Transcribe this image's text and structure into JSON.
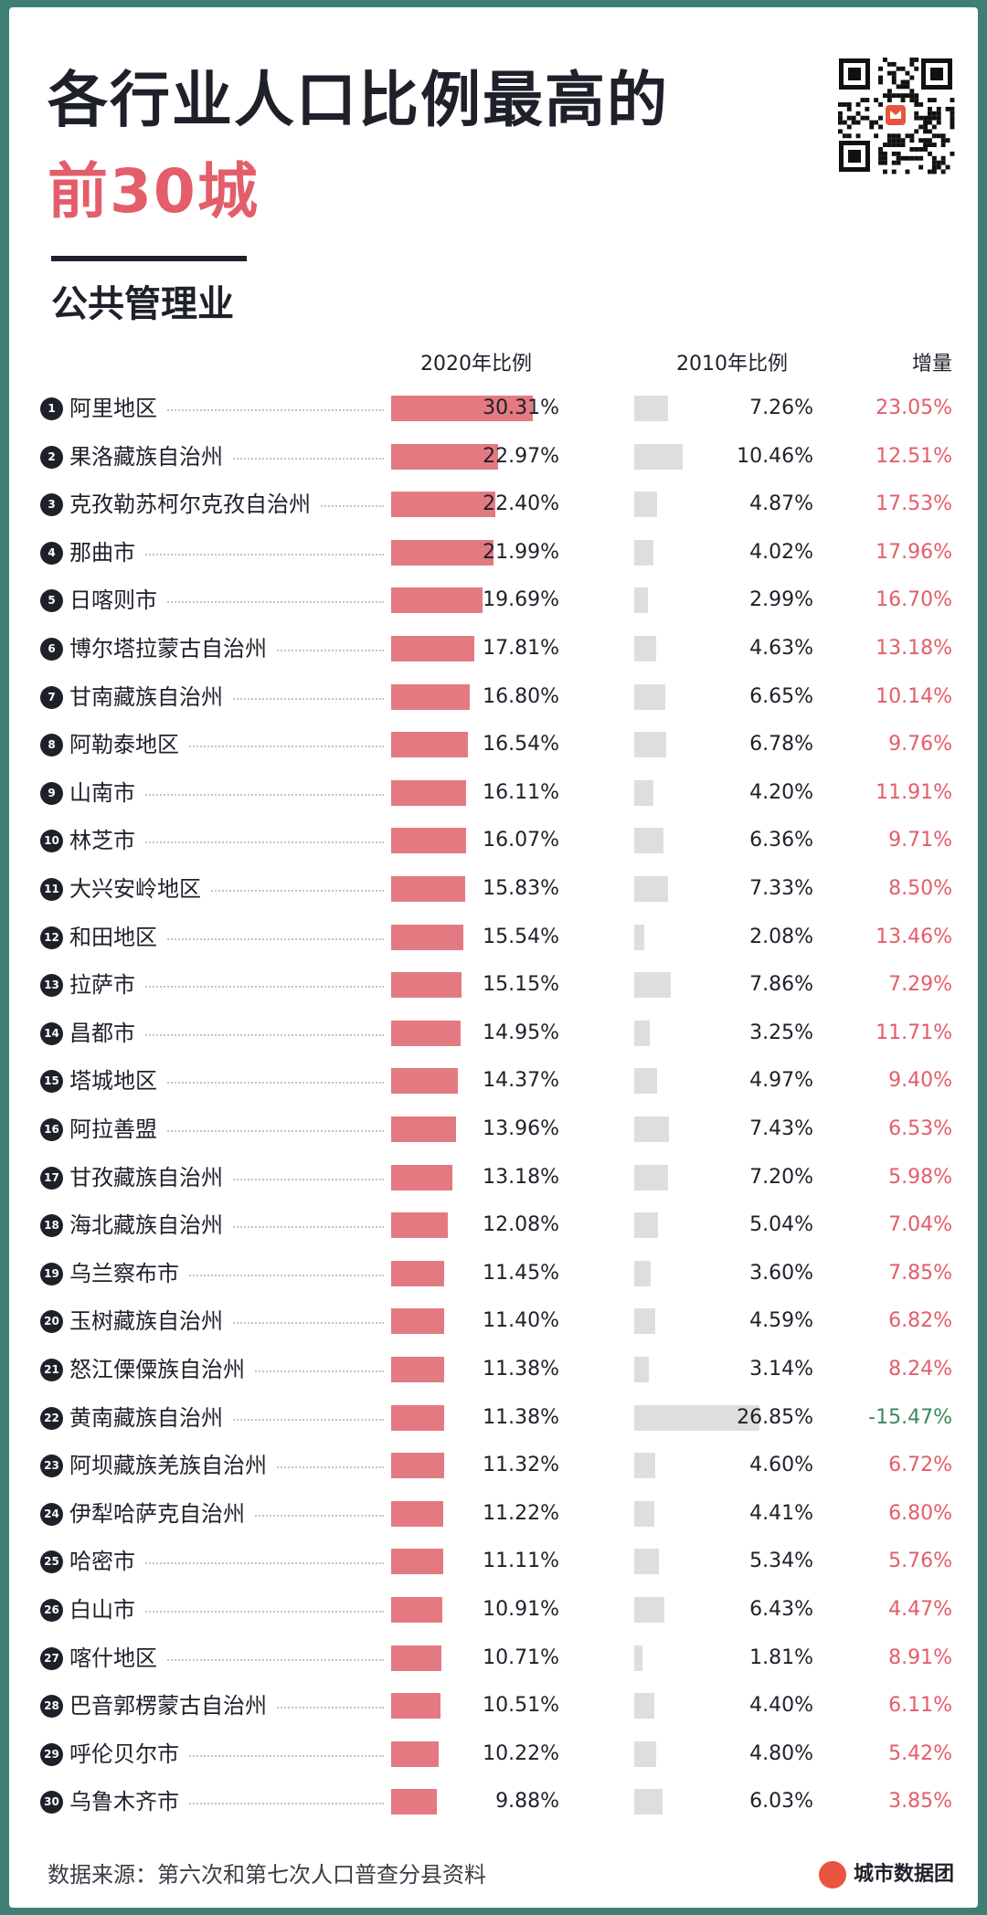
{
  "title_line1": "各行业人口比例最高的",
  "title_line2": "前30城",
  "subtitle": "公共管理业",
  "headers": {
    "y2020": "2020年比例",
    "y2010": "2010年比例",
    "increase": "增量"
  },
  "footer": {
    "source": "数据来源：第六次和第七次人口普查分县资料",
    "brand": "城市数据团"
  },
  "colors": {
    "bar2020": "#e47a81",
    "bar2010": "#dedede",
    "increase_positive": "#e35d6a",
    "increase_negative": "#3a8a5c",
    "accent": "#e35d6a",
    "background": "#3f7f73"
  },
  "icons": {
    "qr": "qr-code-icon",
    "brand": "brand-logo-icon"
  },
  "chart_data": {
    "type": "table",
    "title": "各行业人口比例最高的前30城",
    "subtitle": "公共管理业",
    "columns": [
      "2020年比例",
      "2010年比例",
      "增量"
    ],
    "rows": [
      {
        "rank": "1",
        "city": "阿里地区",
        "y2020": 30.31,
        "y2010": 7.26,
        "inc": 23.05,
        "y2020_text": "30.31%",
        "y2010_text": "7.26%",
        "inc_text": "23.05%"
      },
      {
        "rank": "2",
        "city": "果洛藏族自治州",
        "y2020": 22.97,
        "y2010": 10.46,
        "inc": 12.51,
        "y2020_text": "22.97%",
        "y2010_text": "10.46%",
        "inc_text": "12.51%"
      },
      {
        "rank": "3",
        "city": "克孜勒苏柯尔克孜自治州",
        "y2020": 22.4,
        "y2010": 4.87,
        "inc": 17.53,
        "y2020_text": "22.40%",
        "y2010_text": "4.87%",
        "inc_text": "17.53%"
      },
      {
        "rank": "4",
        "city": "那曲市",
        "y2020": 21.99,
        "y2010": 4.02,
        "inc": 17.96,
        "y2020_text": "21.99%",
        "y2010_text": "4.02%",
        "inc_text": "17.96%"
      },
      {
        "rank": "5",
        "city": "日喀则市",
        "y2020": 19.69,
        "y2010": 2.99,
        "inc": 16.7,
        "y2020_text": "19.69%",
        "y2010_text": "2.99%",
        "inc_text": "16.70%"
      },
      {
        "rank": "6",
        "city": "博尔塔拉蒙古自治州",
        "y2020": 17.81,
        "y2010": 4.63,
        "inc": 13.18,
        "y2020_text": "17.81%",
        "y2010_text": "4.63%",
        "inc_text": "13.18%"
      },
      {
        "rank": "7",
        "city": "甘南藏族自治州",
        "y2020": 16.8,
        "y2010": 6.65,
        "inc": 10.14,
        "y2020_text": "16.80%",
        "y2010_text": "6.65%",
        "inc_text": "10.14%"
      },
      {
        "rank": "8",
        "city": "阿勒泰地区",
        "y2020": 16.54,
        "y2010": 6.78,
        "inc": 9.76,
        "y2020_text": "16.54%",
        "y2010_text": "6.78%",
        "inc_text": "9.76%"
      },
      {
        "rank": "9",
        "city": "山南市",
        "y2020": 16.11,
        "y2010": 4.2,
        "inc": 11.91,
        "y2020_text": "16.11%",
        "y2010_text": "4.20%",
        "inc_text": "11.91%"
      },
      {
        "rank": "10",
        "city": "林芝市",
        "y2020": 16.07,
        "y2010": 6.36,
        "inc": 9.71,
        "y2020_text": "16.07%",
        "y2010_text": "6.36%",
        "inc_text": "9.71%"
      },
      {
        "rank": "11",
        "city": "大兴安岭地区",
        "y2020": 15.83,
        "y2010": 7.33,
        "inc": 8.5,
        "y2020_text": "15.83%",
        "y2010_text": "7.33%",
        "inc_text": "8.50%"
      },
      {
        "rank": "12",
        "city": "和田地区",
        "y2020": 15.54,
        "y2010": 2.08,
        "inc": 13.46,
        "y2020_text": "15.54%",
        "y2010_text": "2.08%",
        "inc_text": "13.46%"
      },
      {
        "rank": "13",
        "city": "拉萨市",
        "y2020": 15.15,
        "y2010": 7.86,
        "inc": 7.29,
        "y2020_text": "15.15%",
        "y2010_text": "7.86%",
        "inc_text": "7.29%"
      },
      {
        "rank": "14",
        "city": "昌都市",
        "y2020": 14.95,
        "y2010": 3.25,
        "inc": 11.71,
        "y2020_text": "14.95%",
        "y2010_text": "3.25%",
        "inc_text": "11.71%"
      },
      {
        "rank": "15",
        "city": "塔城地区",
        "y2020": 14.37,
        "y2010": 4.97,
        "inc": 9.4,
        "y2020_text": "14.37%",
        "y2010_text": "4.97%",
        "inc_text": "9.40%"
      },
      {
        "rank": "16",
        "city": "阿拉善盟",
        "y2020": 13.96,
        "y2010": 7.43,
        "inc": 6.53,
        "y2020_text": "13.96%",
        "y2010_text": "7.43%",
        "inc_text": "6.53%"
      },
      {
        "rank": "17",
        "city": "甘孜藏族自治州",
        "y2020": 13.18,
        "y2010": 7.2,
        "inc": 5.98,
        "y2020_text": "13.18%",
        "y2010_text": "7.20%",
        "inc_text": "5.98%"
      },
      {
        "rank": "18",
        "city": "海北藏族自治州",
        "y2020": 12.08,
        "y2010": 5.04,
        "inc": 7.04,
        "y2020_text": "12.08%",
        "y2010_text": "5.04%",
        "inc_text": "7.04%"
      },
      {
        "rank": "19",
        "city": "乌兰察布市",
        "y2020": 11.45,
        "y2010": 3.6,
        "inc": 7.85,
        "y2020_text": "11.45%",
        "y2010_text": "3.60%",
        "inc_text": "7.85%"
      },
      {
        "rank": "20",
        "city": "玉树藏族自治州",
        "y2020": 11.4,
        "y2010": 4.59,
        "inc": 6.82,
        "y2020_text": "11.40%",
        "y2010_text": "4.59%",
        "inc_text": "6.82%"
      },
      {
        "rank": "21",
        "city": "怒江傈僳族自治州",
        "y2020": 11.38,
        "y2010": 3.14,
        "inc": 8.24,
        "y2020_text": "11.38%",
        "y2010_text": "3.14%",
        "inc_text": "8.24%"
      },
      {
        "rank": "22",
        "city": "黄南藏族自治州",
        "y2020": 11.38,
        "y2010": 26.85,
        "inc": -15.47,
        "y2020_text": "11.38%",
        "y2010_text": "26.85%",
        "inc_text": "-15.47%"
      },
      {
        "rank": "23",
        "city": "阿坝藏族羌族自治州",
        "y2020": 11.32,
        "y2010": 4.6,
        "inc": 6.72,
        "y2020_text": "11.32%",
        "y2010_text": "4.60%",
        "inc_text": "6.72%"
      },
      {
        "rank": "24",
        "city": "伊犁哈萨克自治州",
        "y2020": 11.22,
        "y2010": 4.41,
        "inc": 6.8,
        "y2020_text": "11.22%",
        "y2010_text": "4.41%",
        "inc_text": "6.80%"
      },
      {
        "rank": "25",
        "city": "哈密市",
        "y2020": 11.11,
        "y2010": 5.34,
        "inc": 5.76,
        "y2020_text": "11.11%",
        "y2010_text": "5.34%",
        "inc_text": "5.76%"
      },
      {
        "rank": "26",
        "city": "白山市",
        "y2020": 10.91,
        "y2010": 6.43,
        "inc": 4.47,
        "y2020_text": "10.91%",
        "y2010_text": "6.43%",
        "inc_text": "4.47%"
      },
      {
        "rank": "27",
        "city": "喀什地区",
        "y2020": 10.71,
        "y2010": 1.81,
        "inc": 8.91,
        "y2020_text": "10.71%",
        "y2010_text": "1.81%",
        "inc_text": "8.91%"
      },
      {
        "rank": "28",
        "city": "巴音郭楞蒙古自治州",
        "y2020": 10.51,
        "y2010": 4.4,
        "inc": 6.11,
        "y2020_text": "10.51%",
        "y2010_text": "4.40%",
        "inc_text": "6.11%"
      },
      {
        "rank": "29",
        "city": "呼伦贝尔市",
        "y2020": 10.22,
        "y2010": 4.8,
        "inc": 5.42,
        "y2020_text": "10.22%",
        "y2010_text": "4.80%",
        "inc_text": "5.42%"
      },
      {
        "rank": "30",
        "city": "乌鲁木齐市",
        "y2020": 9.88,
        "y2010": 6.03,
        "inc": 3.85,
        "y2020_text": "9.88%",
        "y2010_text": "6.03%",
        "inc_text": "3.85%"
      }
    ]
  }
}
